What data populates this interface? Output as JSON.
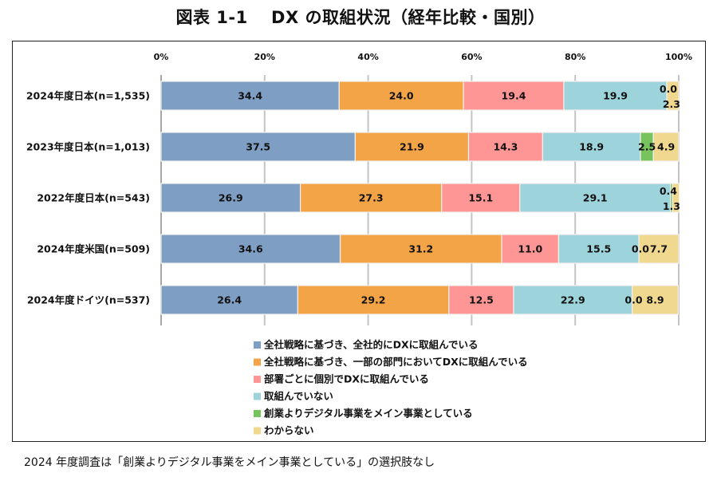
{
  "page": {
    "title": "図表 1-1　 DX の取組状況（経年比較・国別）",
    "note": "2024 年度調査は「創業よりデジタル事業をメイン事業としている」の選択肢なし"
  },
  "chart_data": {
    "type": "bar",
    "orientation": "horizontal",
    "stacked": "percent",
    "title": "図表 1-1　 DX の取組状況（経年比較・国別）",
    "xlabel": "",
    "ylabel": "",
    "xlim": [
      0,
      100
    ],
    "x_ticks": [
      "0%",
      "20%",
      "40%",
      "60%",
      "80%",
      "100%"
    ],
    "x_tick_values": [
      0,
      20,
      40,
      60,
      80,
      100
    ],
    "grid": true,
    "legend_position": "bottom",
    "categories": [
      "2024年度日本(n=1,535)",
      "2023年度日本(n=1,013)",
      "2022年度日本(n=543)",
      "2024年度米国(n=509)",
      "2024年度ドイツ(n=537)"
    ],
    "series": [
      {
        "name": "全社戦略に基づき、全社的にDXに取組んでいる",
        "color": "#7F9EC4",
        "values": [
          34.4,
          37.5,
          26.9,
          34.6,
          26.4
        ]
      },
      {
        "name": "全社戦略に基づき、一部の部門においてDXに取組んでいる",
        "color": "#F2A446",
        "values": [
          24.0,
          21.9,
          27.3,
          31.2,
          29.2
        ]
      },
      {
        "name": "部署ごとに個別でDXに取組んでいる",
        "color": "#FF9696",
        "values": [
          19.4,
          14.3,
          15.1,
          11.0,
          12.5
        ]
      },
      {
        "name": "取組んでいない",
        "color": "#9DD3DA",
        "values": [
          19.9,
          18.9,
          29.1,
          15.5,
          22.9
        ]
      },
      {
        "name": "創業よりデジタル事業をメイン事業としている",
        "color": "#77C35E",
        "values": [
          0.0,
          2.5,
          0.4,
          0.0,
          0.0
        ]
      },
      {
        "name": "わからない",
        "color": "#F0D98E",
        "values": [
          2.3,
          4.9,
          1.3,
          7.7,
          8.9
        ]
      }
    ],
    "data_labels": [
      [
        "34.4",
        "24.0",
        "19.4",
        "19.9",
        "0.0",
        "2.3"
      ],
      [
        "37.5",
        "21.9",
        "14.3",
        "18.9",
        "2.5",
        "4.9"
      ],
      [
        "26.9",
        "27.3",
        "15.1",
        "29.1",
        "0.4",
        "1.3"
      ],
      [
        "34.6",
        "31.2",
        "11.0",
        "15.5",
        "0.0",
        "7.7"
      ],
      [
        "26.4",
        "29.2",
        "12.5",
        "22.9",
        "0.0",
        "8.9"
      ]
    ]
  }
}
